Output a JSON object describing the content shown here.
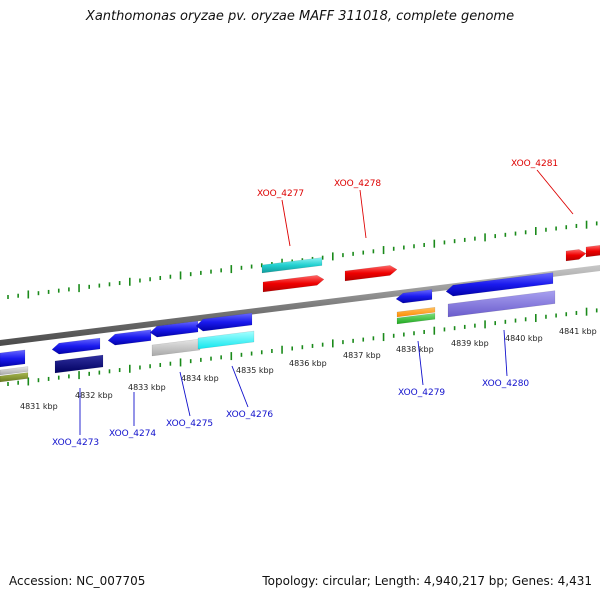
{
  "title": "Xanthomonas oryzae pv. oryzae MAFF 311018, complete genome",
  "footer": {
    "accession": "Accession: NC_007705",
    "summary": "Topology: circular; Length: 4,940,217 bp; Genes: 4,431"
  },
  "colors": {
    "tick": "#1a8a1a",
    "backbone": "#8a8a8a",
    "forward_label": "#dd0000",
    "reverse_label": "#1010cc",
    "scale_label": "#222222"
  },
  "scale_labels": [
    "4831 kbp",
    "4832 kbp",
    "4833 kbp",
    "4834 kbp",
    "4835 kbp",
    "4836 kbp",
    "4837 kbp",
    "4838 kbp",
    "4839 kbp",
    "4840 kbp",
    "4841 kbp"
  ],
  "forward_labels": [
    "XOO_4277",
    "XOO_4278",
    "XOO_4281"
  ],
  "reverse_labels": [
    "XOO_4273",
    "XOO_4274",
    "XOO_4275",
    "XOO_4276",
    "XOO_4279",
    "XOO_4280"
  ]
}
